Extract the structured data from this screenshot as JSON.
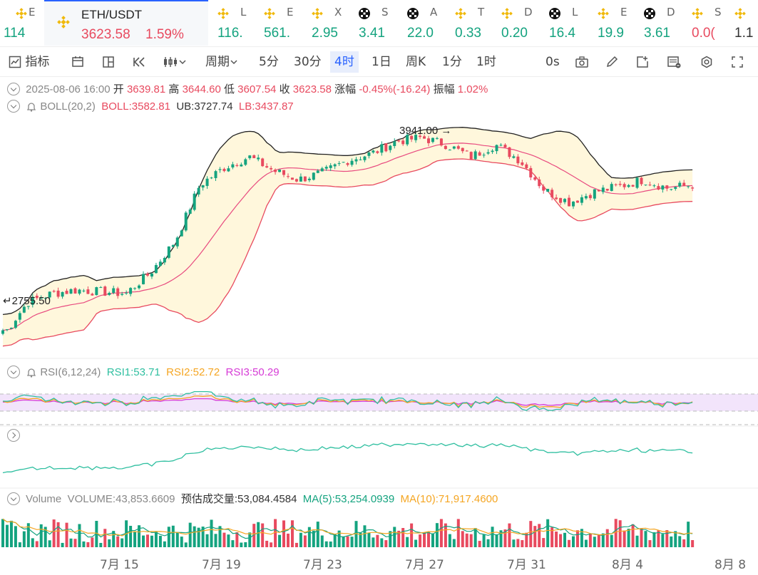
{
  "tickers": [
    {
      "sym": "E",
      "price": "114",
      "color": "up",
      "icon": "binance-icon"
    },
    {
      "sym": "L",
      "price": "116.",
      "color": "up",
      "icon": "binance-icon"
    },
    {
      "sym": "E",
      "price": "561.",
      "color": "up",
      "icon": "binance-icon"
    },
    {
      "sym": "X",
      "price": "2.95",
      "color": "up",
      "icon": "binance-icon"
    },
    {
      "sym": "S",
      "price": "3.41",
      "color": "up",
      "icon": "okx-icon"
    },
    {
      "sym": "A",
      "price": "22.0",
      "color": "up",
      "icon": "okx-icon"
    },
    {
      "sym": "T",
      "price": "0.33",
      "color": "up",
      "icon": "binance-icon"
    },
    {
      "sym": "D",
      "price": "0.20",
      "color": "up",
      "icon": "binance-icon"
    },
    {
      "sym": "L",
      "price": "16.4",
      "color": "up",
      "icon": "okx-icon"
    },
    {
      "sym": "E",
      "price": "19.9",
      "color": "up",
      "icon": "binance-icon"
    },
    {
      "sym": "D",
      "price": "3.61",
      "color": "up",
      "icon": "okx-icon"
    },
    {
      "sym": "S",
      "price": "0.0(",
      "color": "down",
      "icon": "binance-icon"
    },
    {
      "sym": "",
      "price": "1.1",
      "color": "neutral",
      "icon": "binance-icon"
    }
  ],
  "active_ticker": {
    "sym": "ETH/USDT",
    "price": "3623.58",
    "change": "1.59%",
    "icon": "binance-icon"
  },
  "toolbar": {
    "indicators": "指标",
    "period": "周期",
    "intervals": [
      "5分",
      "30分",
      "4时",
      "1日",
      "周K",
      "1分",
      "1时"
    ],
    "selected_interval": "4时",
    "countdown": "0s"
  },
  "ohlc": {
    "date": "2025-08-06 16:00",
    "open_label": "开",
    "open": "3639.81",
    "high_label": "高",
    "high": "3644.60",
    "low_label": "低",
    "low": "3607.54",
    "close_label": "收",
    "close": "3623.58",
    "chg_label": "涨幅",
    "chg": "-0.45%(-16.24)",
    "amp_label": "振幅",
    "amp": "1.02%"
  },
  "boll": {
    "name": "BOLL(20,2)",
    "mid": "BOLL:3582.81",
    "ub": "UB:3727.74",
    "lb": "LB:3437.87"
  },
  "rsi": {
    "name": "RSI(6,12,24)",
    "rsi1": "RSI1:53.71",
    "rsi2": "RSI2:52.72",
    "rsi3": "RSI3:50.29"
  },
  "volume": {
    "name": "Volume",
    "vol": "VOLUME:43,853.6609",
    "est": "预估成交量:53,084.4584",
    "ma5": "MA(5):53,254.0939",
    "ma10": "MA(10):71,917.4600"
  },
  "chart_data": {
    "type": "candlestick",
    "high_marker": "3941.00",
    "low_marker": "2755.50",
    "x_labels": [
      "7月 15",
      "7月 19",
      "7月 23",
      "7月 27",
      "7月 31",
      "8月 4",
      "8月 8"
    ],
    "close_path": [
      2760,
      2950,
      3000,
      3020,
      3010,
      3000,
      3120,
      3300,
      3620,
      3720,
      3780,
      3700,
      3650,
      3690,
      3760,
      3800,
      3870,
      3890,
      3850,
      3780,
      3850,
      3760,
      3590,
      3520,
      3580,
      3610,
      3650,
      3600,
      3620
    ]
  },
  "colors": {
    "up": "#14a37f",
    "down": "#e84a5f",
    "boll_mid": "#e84a7f",
    "band": "#fff7dc",
    "rsi1": "#2fbfa0",
    "rsi2": "#f5a623",
    "rsi3": "#d63bd6",
    "accent": "#2962ff"
  }
}
